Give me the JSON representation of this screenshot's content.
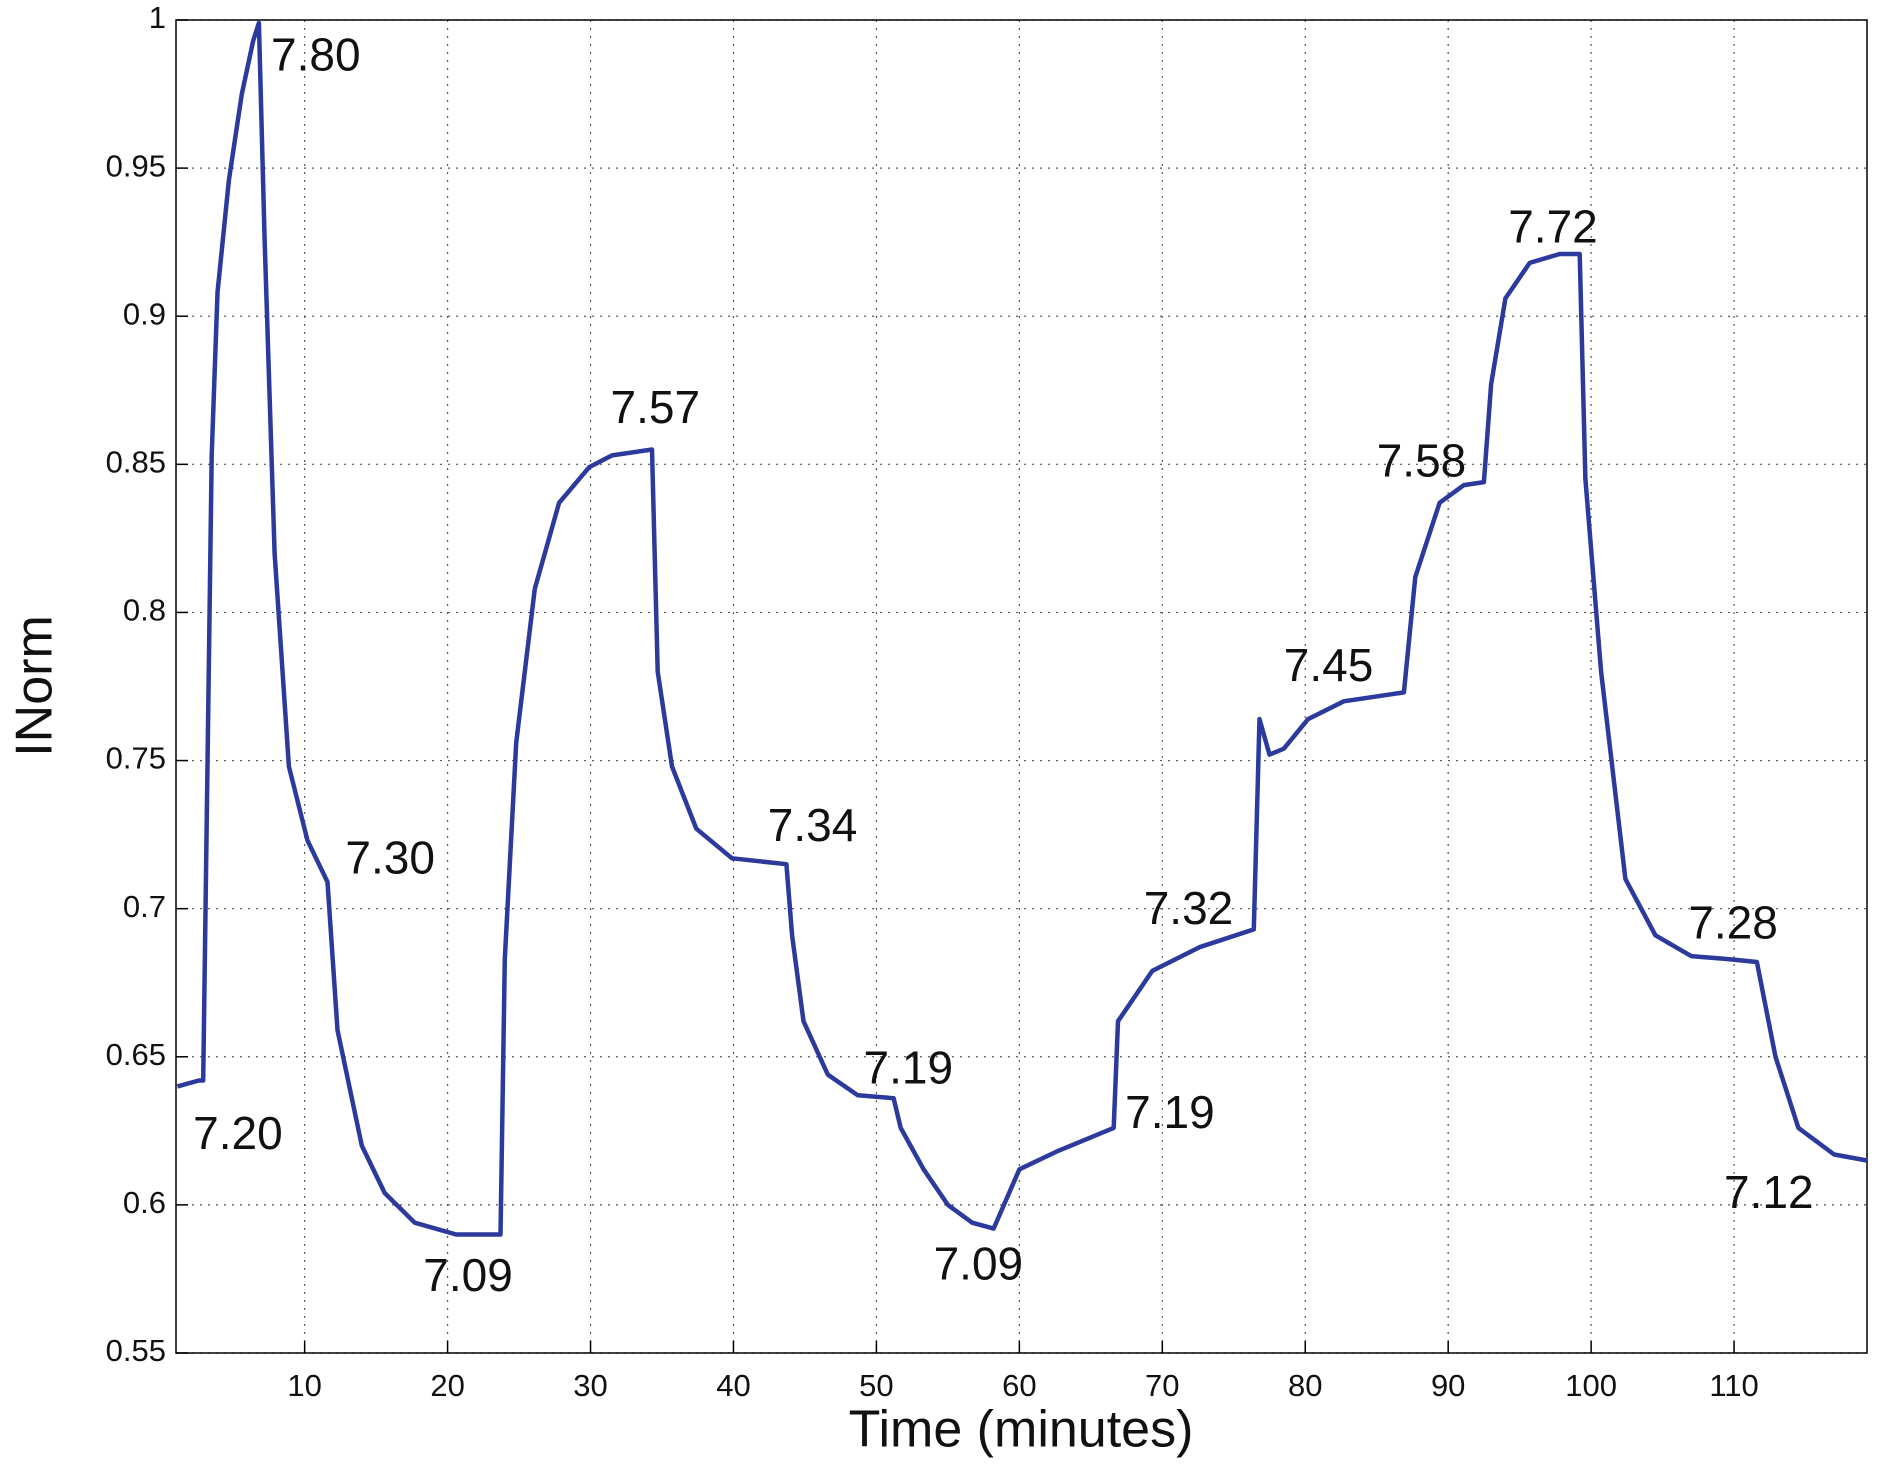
{
  "chart_data": {
    "type": "line",
    "xlabel": "Time (minutes)",
    "ylabel": "INorm",
    "xlim": [
      1,
      119.3
    ],
    "ylim": [
      0.55,
      1
    ],
    "xticks": [
      10,
      20,
      30,
      40,
      50,
      60,
      70,
      80,
      90,
      100,
      110
    ],
    "yticks": [
      0.55,
      0.6,
      0.65,
      0.7,
      0.75,
      0.8,
      0.85,
      0.9,
      0.95,
      1
    ],
    "grid": true,
    "x": [
      1.1,
      2.6,
      2.9,
      3.5,
      3.9,
      4.7,
      5.6,
      6.4,
      6.8,
      7.2,
      7.9,
      8.9,
      10.2,
      11.6,
      12.3,
      14,
      15.6,
      17.7,
      20.6,
      23.7,
      24,
      24.8,
      26.1,
      27.8,
      29.9,
      31.5,
      34.3,
      34.7,
      35.7,
      37.4,
      39.9,
      43.7,
      44.1,
      44.9,
      46.6,
      48.7,
      51.2,
      51.7,
      53.3,
      55,
      56.7,
      58.2,
      60,
      62.6,
      66.6,
      66.9,
      69.3,
      72.6,
      76.4,
      76.8,
      77.5,
      78.5,
      80.2,
      82.7,
      86.9,
      87.7,
      89.4,
      91.1,
      92.5,
      93,
      94,
      95.7,
      97.8,
      99.2,
      99.6,
      100.7,
      102.4,
      104.5,
      107,
      109.5,
      111.6,
      112.9,
      114.5,
      117,
      119.3
    ],
    "series": [
      {
        "color": "#2b3a9c",
        "values": [
          0.64,
          0.642,
          0.642,
          0.853,
          0.908,
          0.946,
          0.975,
          0.993,
          0.999,
          0.926,
          0.82,
          0.748,
          0.723,
          0.709,
          0.659,
          0.62,
          0.604,
          0.594,
          0.59,
          0.59,
          0.683,
          0.756,
          0.808,
          0.837,
          0.849,
          0.853,
          0.855,
          0.78,
          0.748,
          0.727,
          0.717,
          0.715,
          0.691,
          0.662,
          0.644,
          0.637,
          0.636,
          0.626,
          0.612,
          0.6,
          0.594,
          0.592,
          0.612,
          0.618,
          0.626,
          0.662,
          0.679,
          0.687,
          0.693,
          0.764,
          0.752,
          0.754,
          0.764,
          0.77,
          0.773,
          0.812,
          0.837,
          0.843,
          0.844,
          0.877,
          0.906,
          0.918,
          0.921,
          0.921,
          0.845,
          0.78,
          0.71,
          0.691,
          0.684,
          0.683,
          0.682,
          0.65,
          0.626,
          0.617,
          0.615
        ]
      }
    ],
    "annotations": [
      {
        "text": "7.80",
        "x": 7.65,
        "y": 0.987
      },
      {
        "text": "7.20",
        "x": 2.2,
        "y": 0.623
      },
      {
        "text": "7.30",
        "x": 12.85,
        "y": 0.716
      },
      {
        "text": "7.09",
        "x": 18.3,
        "y": 0.575
      },
      {
        "text": "7.57",
        "x": 31.4,
        "y": 0.868
      },
      {
        "text": "7.34",
        "x": 42.4,
        "y": 0.727
      },
      {
        "text": "7.19",
        "x": 49.1,
        "y": 0.645
      },
      {
        "text": "7.09",
        "x": 54,
        "y": 0.579
      },
      {
        "text": "7.19",
        "x": 67.4,
        "y": 0.63
      },
      {
        "text": "7.32",
        "x": 68.7,
        "y": 0.699
      },
      {
        "text": "7.45",
        "x": 78.5,
        "y": 0.781
      },
      {
        "text": "7.58",
        "x": 85,
        "y": 0.85
      },
      {
        "text": "7.72",
        "x": 94.2,
        "y": 0.929
      },
      {
        "text": "7.28",
        "x": 106.8,
        "y": 0.694
      },
      {
        "text": "7.12",
        "x": 109.3,
        "y": 0.603
      }
    ]
  }
}
